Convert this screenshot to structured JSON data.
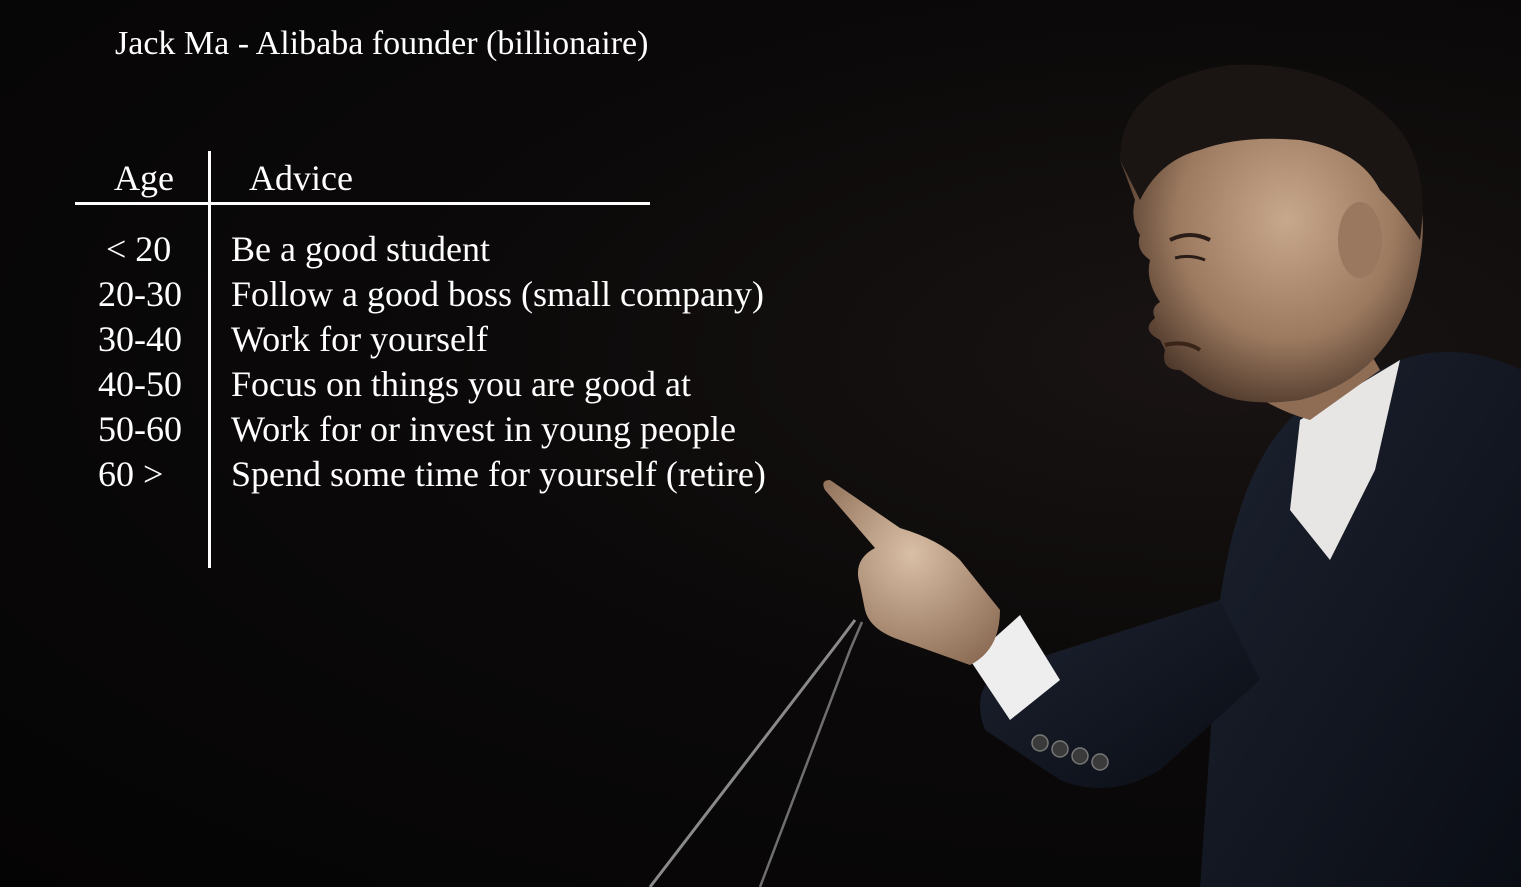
{
  "title": "Jack Ma - Alibaba founder (billionaire)",
  "table": {
    "headers": {
      "age": "Age",
      "advice": "Advice"
    },
    "rows": [
      {
        "age": "< 20",
        "advice": "Be a good student"
      },
      {
        "age": "20-30",
        "advice": "Follow a good boss (small company)"
      },
      {
        "age": "30-40",
        "advice": "Work for yourself"
      },
      {
        "age": "40-50",
        "advice": "Focus on things you are good at"
      },
      {
        "age": "50-60",
        "advice": "Work for or invest in young people"
      },
      {
        "age": "60 >",
        "advice": "Spend some time for yourself (retire)"
      }
    ]
  },
  "colors": {
    "background": "#070606",
    "text": "#ffffff"
  }
}
